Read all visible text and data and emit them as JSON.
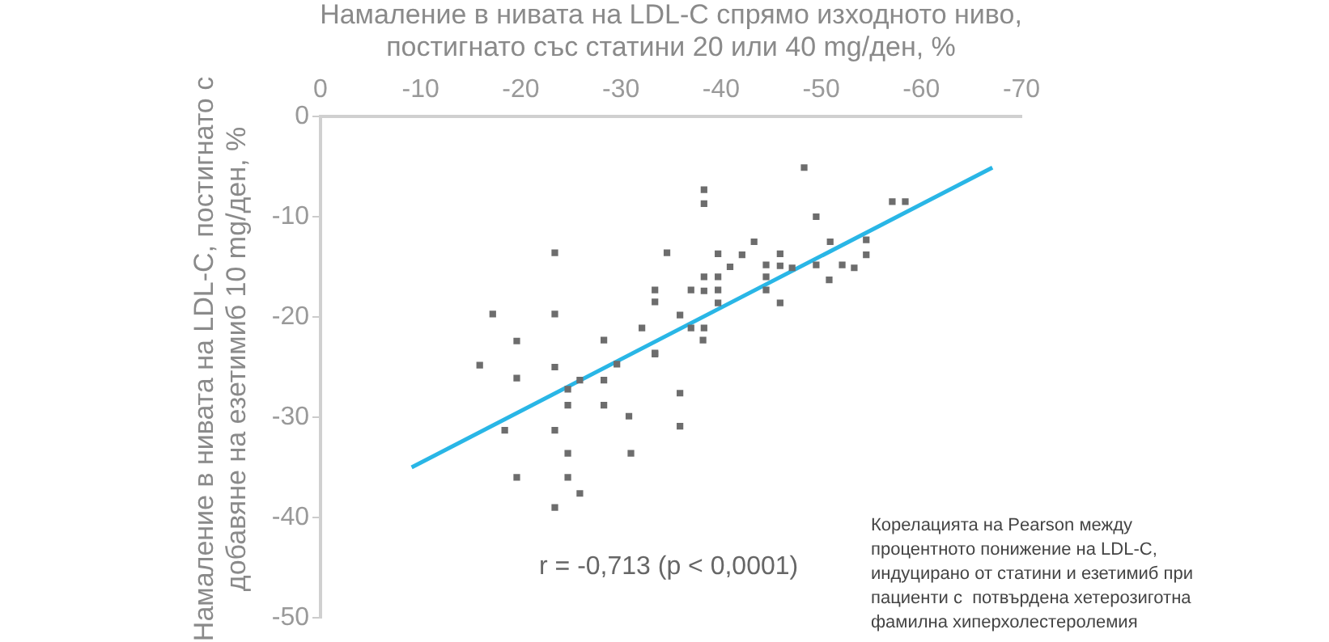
{
  "chart_data": {
    "type": "scatter",
    "xlabel": "Намаление в нивата на LDL-C спрямо изходното ниво, постигнато със статини 20 или 40 mg/ден, %",
    "ylabel": "Намаление в нивата на LDL-C, постигнато с добавяне на езетимиб 10 mg/ден, %",
    "xlim": [
      0,
      -70
    ],
    "xticks": [
      0,
      -10,
      -20,
      -30,
      -40,
      -50,
      -60,
      -70
    ],
    "ylim": [
      -50,
      0
    ],
    "yticks": [
      0,
      -10,
      -20,
      -30,
      -40,
      -50
    ],
    "grid": false,
    "legend": false,
    "series": [
      {
        "color": "#6d6d6d",
        "marker": "square",
        "x": [
          -23.4,
          -17.2,
          -23.4,
          -19.6,
          -28.3,
          -32.1,
          -15.9,
          -23.4,
          -29.6,
          -19.6,
          -25.9,
          -28.3,
          -24.7,
          -24.7,
          -28.3,
          -30.8,
          -18.4,
          -23.4,
          -24.7,
          -31,
          -19.6,
          -24.7,
          -25.9,
          -23.4,
          -38.2,
          -33.4,
          -35.9,
          -35.9,
          -48.3,
          -38.3,
          -38.3,
          -57.1,
          -58.4,
          -49.5,
          -34.6,
          -43.3,
          -50.9,
          -54.5,
          -54.5,
          -39.7,
          -42.1,
          -45.9,
          -44.5,
          -45.9,
          -47.1,
          -40.9,
          -49.5,
          -52.1,
          -53.3,
          -50.8,
          -38.3,
          -39.7,
          -44.5,
          -33.4,
          -37,
          -38.3,
          -39.7,
          -44.5,
          -33.4,
          -39.7,
          -45.9,
          -35.9,
          -37,
          -38.3,
          -33.4
        ],
        "values": [
          -13.6,
          -19.7,
          -19.7,
          -22.4,
          -22.3,
          -21.1,
          -24.8,
          -25,
          -24.7,
          -26.1,
          -26.3,
          -26.3,
          -27.2,
          -28.8,
          -28.8,
          -29.9,
          -31.3,
          -31.3,
          -33.6,
          -33.6,
          -36,
          -36,
          -37.6,
          -39,
          -22.3,
          -23.6,
          -27.6,
          -30.9,
          -5.1,
          -7.3,
          -8.7,
          -8.5,
          -8.5,
          -10,
          -13.6,
          -12.5,
          -12.5,
          -12.3,
          -13.8,
          -13.7,
          -13.8,
          -13.7,
          -14.8,
          -14.9,
          -15.1,
          -15,
          -14.8,
          -14.8,
          -15.1,
          -16.3,
          -16,
          -16,
          -16,
          -17.3,
          -17.3,
          -17.4,
          -17.3,
          -17.3,
          -18.5,
          -18.6,
          -18.6,
          -19.8,
          -21.1,
          -21.1,
          -23.7
        ]
      },
      {
        "type": "line",
        "marker": "none",
        "color": "#29b6e6",
        "x": [
          -9.1,
          -67.1
        ],
        "values": [
          -35,
          -5.1
        ]
      }
    ],
    "annotations": [
      "r = -0,713 (p < 0,0001)",
      "Корелацията на Pearson между процентното понижение на LDL-C, индуцирано от статини и езетимиб при пациенти с  потвърдена хетерозиготна фамилна хиперхолестеролемия"
    ]
  }
}
